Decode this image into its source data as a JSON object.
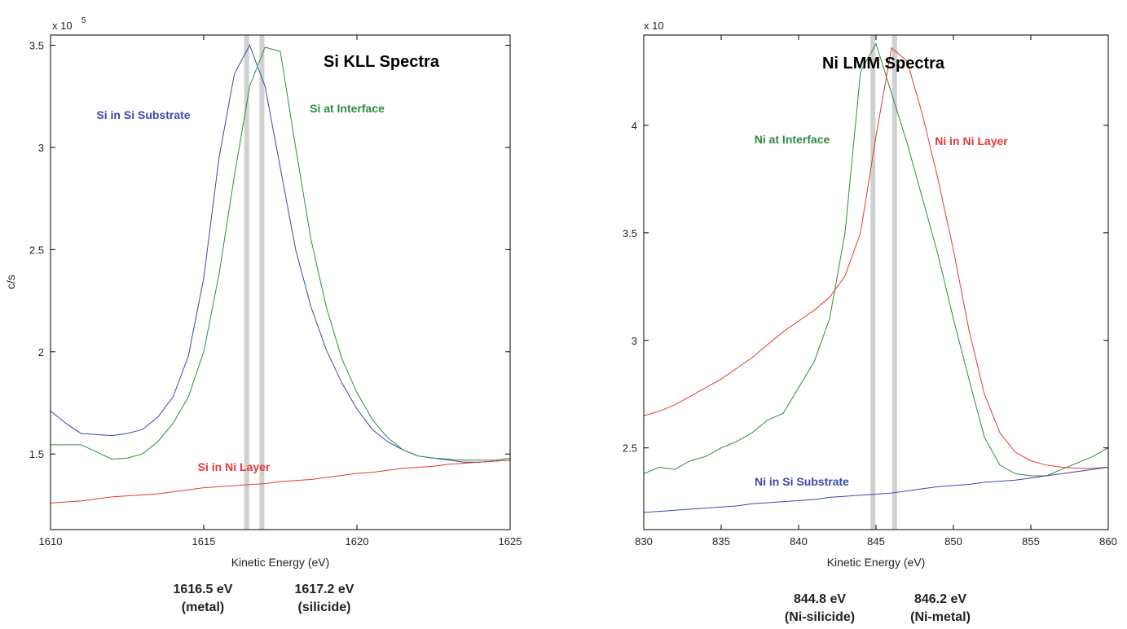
{
  "chart_data": [
    {
      "type": "line",
      "title": "Si KLL Spectra",
      "xlabel": "Kinetic Energy (eV)",
      "ylabel": "c/s",
      "y_exponent_label": "x 10",
      "y_exponent_power": "5",
      "xlim": [
        1610,
        1625
      ],
      "ylim": [
        1.13,
        3.55
      ],
      "xticks": [
        "1610",
        "1615",
        "1620",
        "1625"
      ],
      "yticks": [
        "1.5",
        "2",
        "2.5",
        "3",
        "3.5"
      ],
      "vertical_bands": [
        1616.4,
        1616.9
      ],
      "peak_annotations": [
        {
          "energy": "1616.5 eV",
          "phase": "(metal)"
        },
        {
          "energy": "1617.2 eV",
          "phase": "(silicide)"
        }
      ],
      "series": [
        {
          "name": "Si in Si Substrate",
          "color": "#3949ab",
          "x": [
            1610,
            1610.5,
            1611,
            1611.5,
            1612,
            1612.5,
            1613,
            1613.5,
            1614,
            1614.5,
            1615,
            1615.5,
            1616,
            1616.5,
            1617,
            1617.5,
            1618,
            1618.5,
            1619,
            1619.5,
            1620,
            1620.5,
            1621,
            1621.5,
            1622,
            1622.5,
            1623,
            1623.5,
            1624,
            1624.5,
            1625
          ],
          "y": [
            1.71,
            1.65,
            1.6,
            1.595,
            1.59,
            1.6,
            1.62,
            1.68,
            1.78,
            1.98,
            2.36,
            2.95,
            3.36,
            3.5,
            3.3,
            2.9,
            2.5,
            2.22,
            2.01,
            1.85,
            1.72,
            1.62,
            1.56,
            1.52,
            1.49,
            1.48,
            1.47,
            1.46,
            1.46,
            1.465,
            1.47
          ]
        },
        {
          "name": "Si at Interface",
          "color": "#2e8b3e",
          "x": [
            1610,
            1610.5,
            1611,
            1611.5,
            1612,
            1612.5,
            1613,
            1613.5,
            1614,
            1614.5,
            1615,
            1615.5,
            1616,
            1616.5,
            1617,
            1617.5,
            1618,
            1618.5,
            1619,
            1619.5,
            1620,
            1620.5,
            1621,
            1621.5,
            1622,
            1622.5,
            1623,
            1623.5,
            1624,
            1624.5,
            1625
          ],
          "y": [
            1.545,
            1.545,
            1.545,
            1.51,
            1.475,
            1.48,
            1.5,
            1.56,
            1.65,
            1.78,
            2.0,
            2.38,
            2.86,
            3.3,
            3.49,
            3.47,
            3.0,
            2.55,
            2.22,
            1.97,
            1.8,
            1.67,
            1.58,
            1.52,
            1.49,
            1.48,
            1.475,
            1.47,
            1.47,
            1.47,
            1.48
          ]
        },
        {
          "name": "Si in Ni Layer",
          "color": "#e53935",
          "x": [
            1610,
            1610.5,
            1611,
            1611.5,
            1612,
            1612.5,
            1613,
            1613.5,
            1614,
            1614.5,
            1615,
            1615.5,
            1616,
            1616.5,
            1617,
            1617.5,
            1618,
            1618.5,
            1619,
            1619.5,
            1620,
            1620.5,
            1621,
            1621.5,
            1622,
            1622.5,
            1623,
            1623.5,
            1624,
            1624.5,
            1625
          ],
          "y": [
            1.26,
            1.265,
            1.27,
            1.28,
            1.29,
            1.295,
            1.3,
            1.305,
            1.315,
            1.325,
            1.335,
            1.34,
            1.345,
            1.35,
            1.355,
            1.365,
            1.37,
            1.375,
            1.385,
            1.395,
            1.405,
            1.41,
            1.42,
            1.43,
            1.435,
            1.44,
            1.45,
            1.455,
            1.46,
            1.465,
            1.47
          ]
        }
      ]
    },
    {
      "type": "line",
      "title": "Ni LMM Spectra",
      "xlabel": "Kinetic Energy (eV)",
      "ylabel": "",
      "y_exponent_label": "x 10",
      "y_exponent_power": "",
      "xlim": [
        830,
        860
      ],
      "ylim": [
        2.12,
        4.42
      ],
      "xticks": [
        "830",
        "835",
        "840",
        "845",
        "850",
        "855",
        "860"
      ],
      "yticks": [
        "2.5",
        "3",
        "3.5",
        "4"
      ],
      "vertical_bands": [
        844.8,
        846.2
      ],
      "peak_annotations": [
        {
          "energy": "844.8 eV",
          "phase": "(Ni-silicide)"
        },
        {
          "energy": "846.2 eV",
          "phase": "(Ni-metal)"
        }
      ],
      "series": [
        {
          "name": "Ni at Interface",
          "color": "#2e8b3e",
          "x": [
            830,
            831,
            832,
            833,
            834,
            835,
            836,
            837,
            838,
            839,
            840,
            841,
            842,
            843,
            844,
            845,
            846,
            847,
            848,
            849,
            850,
            851,
            852,
            853,
            854,
            855,
            856,
            857,
            858,
            859,
            860
          ],
          "y": [
            2.38,
            2.41,
            2.4,
            2.44,
            2.46,
            2.5,
            2.53,
            2.57,
            2.63,
            2.66,
            2.78,
            2.9,
            3.1,
            3.5,
            4.25,
            4.38,
            4.15,
            3.92,
            3.66,
            3.4,
            3.1,
            2.82,
            2.55,
            2.42,
            2.38,
            2.37,
            2.37,
            2.4,
            2.43,
            2.46,
            2.5
          ]
        },
        {
          "name": "Ni in Ni Layer",
          "color": "#e53935",
          "x": [
            830,
            831,
            832,
            833,
            834,
            835,
            836,
            837,
            838,
            839,
            840,
            841,
            842,
            843,
            844,
            845,
            846,
            847,
            848,
            849,
            850,
            851,
            852,
            853,
            854,
            855,
            856,
            857,
            858,
            859,
            860
          ],
          "y": [
            2.65,
            2.67,
            2.7,
            2.74,
            2.78,
            2.82,
            2.87,
            2.92,
            2.98,
            3.04,
            3.09,
            3.14,
            3.2,
            3.3,
            3.5,
            3.95,
            4.36,
            4.3,
            4.05,
            3.75,
            3.42,
            3.05,
            2.75,
            2.57,
            2.48,
            2.44,
            2.42,
            2.41,
            2.405,
            2.405,
            2.41
          ]
        },
        {
          "name": "Ni in Si Substrate",
          "color": "#3949ab",
          "x": [
            830,
            831,
            832,
            833,
            834,
            835,
            836,
            837,
            838,
            839,
            840,
            841,
            842,
            843,
            844,
            845,
            846,
            847,
            848,
            849,
            850,
            851,
            852,
            853,
            854,
            855,
            856,
            857,
            858,
            859,
            860
          ],
          "y": [
            2.2,
            2.205,
            2.21,
            2.215,
            2.22,
            2.225,
            2.23,
            2.24,
            2.245,
            2.25,
            2.255,
            2.26,
            2.27,
            2.275,
            2.28,
            2.285,
            2.29,
            2.3,
            2.31,
            2.32,
            2.325,
            2.33,
            2.34,
            2.345,
            2.35,
            2.36,
            2.37,
            2.38,
            2.39,
            2.4,
            2.41
          ]
        }
      ]
    }
  ]
}
